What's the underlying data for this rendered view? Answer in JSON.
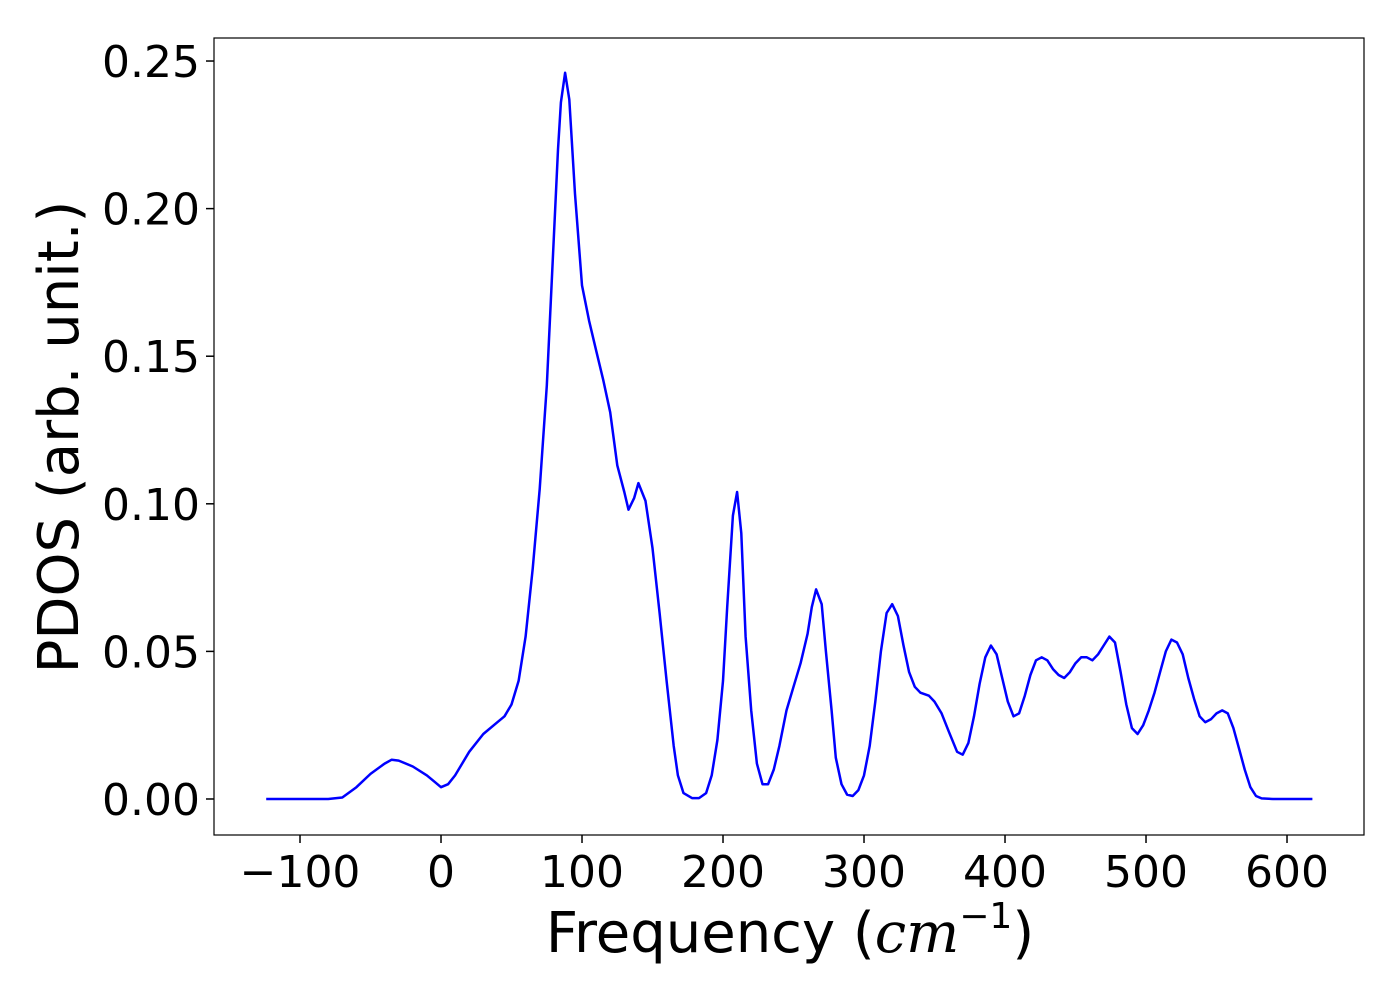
{
  "chart_data": {
    "type": "line",
    "xlabel": [
      "Frequency (",
      "cm",
      "−1",
      ")"
    ],
    "ylabel": "PDOS (arb. unit.)",
    "color": "#0000ff",
    "xlim": [
      -161,
      654.6
    ],
    "ylim": [
      -0.0122,
      0.2578
    ],
    "xticks": [
      {
        "value": -100,
        "label": "−100"
      },
      0,
      100,
      200,
      300,
      400,
      500,
      600
    ],
    "yticks": [
      {
        "value": 0,
        "label": "0.00"
      },
      {
        "value": 0.05,
        "label": "0.05"
      },
      {
        "value": 0.1,
        "label": "0.10"
      },
      {
        "value": 0.15,
        "label": "0.15"
      },
      {
        "value": 0.2,
        "label": "0.20"
      },
      {
        "value": 0.25,
        "label": "0.25"
      }
    ],
    "x": [
      -124,
      -80,
      -70,
      -60,
      -50,
      -40,
      -35,
      -30,
      -20,
      -10,
      -5,
      0,
      5,
      10,
      20,
      30,
      40,
      45,
      50,
      55,
      60,
      65,
      70,
      75,
      80,
      83,
      85,
      88,
      91,
      95,
      100,
      105,
      110,
      115,
      120,
      125,
      130,
      133,
      137,
      140,
      145,
      150,
      155,
      160,
      165,
      168,
      172,
      178,
      183,
      188,
      192,
      196,
      200,
      203,
      207,
      210,
      213,
      216,
      220,
      224,
      228,
      232,
      236,
      240,
      245,
      250,
      255,
      260,
      263,
      266,
      270,
      273,
      277,
      280,
      284,
      288,
      292,
      296,
      300,
      304,
      308,
      312,
      316,
      320,
      324,
      328,
      332,
      336,
      340,
      346,
      350,
      355,
      360,
      366,
      370,
      374,
      378,
      382,
      386,
      390,
      394,
      398,
      402,
      406,
      410,
      414,
      418,
      422,
      426,
      430,
      434,
      438,
      442,
      446,
      450,
      454,
      458,
      462,
      466,
      470,
      474,
      478,
      482,
      486,
      490,
      494,
      498,
      502,
      506,
      510,
      514,
      518,
      522,
      526,
      530,
      534,
      538,
      542,
      546,
      550,
      554,
      558,
      562,
      566,
      570,
      574,
      578,
      582,
      590,
      618
    ],
    "values": [
      0,
      0,
      0.0005,
      0.004,
      0.0085,
      0.012,
      0.0133,
      0.013,
      0.011,
      0.008,
      0.006,
      0.004,
      0.005,
      0.008,
      0.016,
      0.022,
      0.026,
      0.028,
      0.032,
      0.04,
      0.055,
      0.078,
      0.105,
      0.14,
      0.19,
      0.22,
      0.236,
      0.246,
      0.237,
      0.205,
      0.174,
      0.162,
      0.152,
      0.142,
      0.131,
      0.113,
      0.104,
      0.098,
      0.102,
      0.107,
      0.101,
      0.085,
      0.063,
      0.04,
      0.018,
      0.008,
      0.002,
      0.0003,
      0.0003,
      0.002,
      0.008,
      0.02,
      0.04,
      0.065,
      0.096,
      0.104,
      0.09,
      0.055,
      0.03,
      0.012,
      0.005,
      0.005,
      0.01,
      0.018,
      0.03,
      0.038,
      0.046,
      0.056,
      0.065,
      0.071,
      0.066,
      0.05,
      0.03,
      0.014,
      0.005,
      0.0015,
      0.001,
      0.003,
      0.008,
      0.018,
      0.033,
      0.05,
      0.063,
      0.066,
      0.062,
      0.052,
      0.043,
      0.038,
      0.036,
      0.035,
      0.033,
      0.029,
      0.023,
      0.016,
      0.015,
      0.019,
      0.028,
      0.039,
      0.048,
      0.052,
      0.049,
      0.041,
      0.033,
      0.028,
      0.029,
      0.035,
      0.042,
      0.047,
      0.048,
      0.047,
      0.044,
      0.042,
      0.041,
      0.043,
      0.046,
      0.048,
      0.048,
      0.047,
      0.049,
      0.052,
      0.055,
      0.053,
      0.043,
      0.032,
      0.024,
      0.022,
      0.025,
      0.03,
      0.036,
      0.043,
      0.05,
      0.054,
      0.053,
      0.049,
      0.041,
      0.034,
      0.028,
      0.026,
      0.027,
      0.029,
      0.03,
      0.029,
      0.024,
      0.017,
      0.01,
      0.004,
      0.001,
      0.0002,
      0,
      0
    ]
  }
}
